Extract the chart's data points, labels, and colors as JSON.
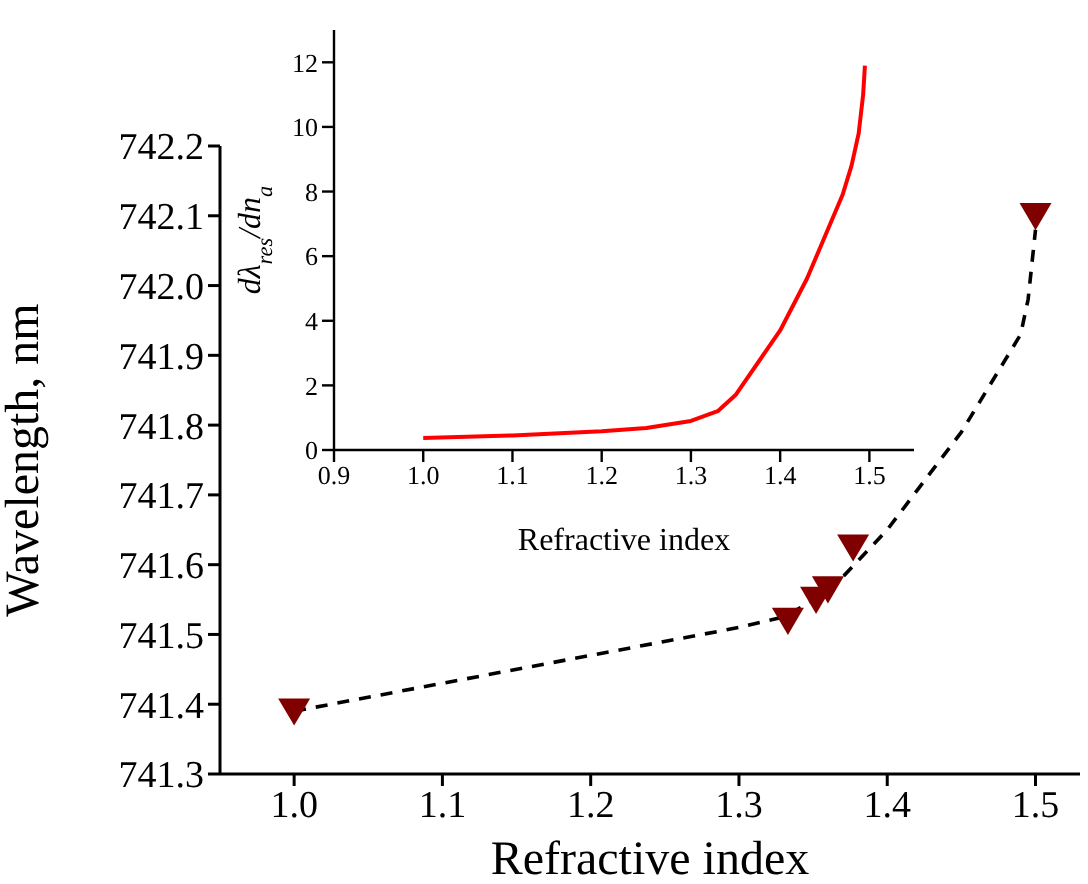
{
  "chart_data": [
    {
      "type": "scatter",
      "xlabel": "Refractive index",
      "ylabel": "Wavelength, nm",
      "xlim": [
        0.95,
        1.53
      ],
      "ylim": [
        741.3,
        742.2
      ],
      "xticks": [
        {
          "value": 1,
          "label": "1.0"
        },
        1.1,
        1.2,
        1.3,
        1.4,
        1.5
      ],
      "yticks": [
        741.3,
        741.4,
        741.5,
        741.6,
        741.7,
        741.8,
        741.9,
        {
          "value": 742,
          "label": "742.0"
        },
        742.1,
        742.2
      ],
      "grid": false,
      "legend": false,
      "series": [
        {
          "type": "line",
          "color": "#000000",
          "line_style": "dashed",
          "marker": "none",
          "x": [
            1.0,
            1.1,
            1.2,
            1.3,
            1.33,
            1.36,
            1.4,
            1.45,
            1.49,
            1.495,
            1.5
          ],
          "values": [
            741.39,
            741.43,
            741.47,
            741.51,
            741.525,
            741.56,
            741.65,
            741.79,
            741.93,
            741.98,
            742.08
          ]
        },
        {
          "type": "scatter",
          "color": "#800000",
          "marker": "triangle",
          "x": [
            1.0,
            1.333,
            1.352,
            1.36,
            1.377,
            1.5
          ],
          "values": [
            741.39,
            741.52,
            741.55,
            741.565,
            741.625,
            742.1
          ]
        }
      ]
    },
    {
      "type": "line",
      "xlabel": "Refractive index",
      "ylabel": "dλ$_{res}$/dn$_{a}$",
      "xlim": [
        0.9,
        1.55
      ],
      "ylim": [
        0,
        13
      ],
      "xticks": [
        0.9,
        {
          "value": 1,
          "label": "1.0"
        },
        1.1,
        1.2,
        1.3,
        1.4,
        1.5
      ],
      "yticks": [
        0,
        2,
        4,
        6,
        8,
        10,
        12
      ],
      "grid": false,
      "legend": false,
      "series": [
        {
          "color": "#ff0000",
          "marker": "none",
          "line_style": "solid",
          "x": [
            1.0,
            1.1,
            1.2,
            1.25,
            1.3,
            1.33,
            1.35,
            1.4,
            1.43,
            1.45,
            1.47,
            1.48,
            1.488,
            1.493,
            1.495
          ],
          "values": [
            0.37,
            0.45,
            0.58,
            0.68,
            0.9,
            1.2,
            1.7,
            3.7,
            5.3,
            6.6,
            7.9,
            8.8,
            9.8,
            11,
            11.9
          ]
        }
      ]
    }
  ]
}
